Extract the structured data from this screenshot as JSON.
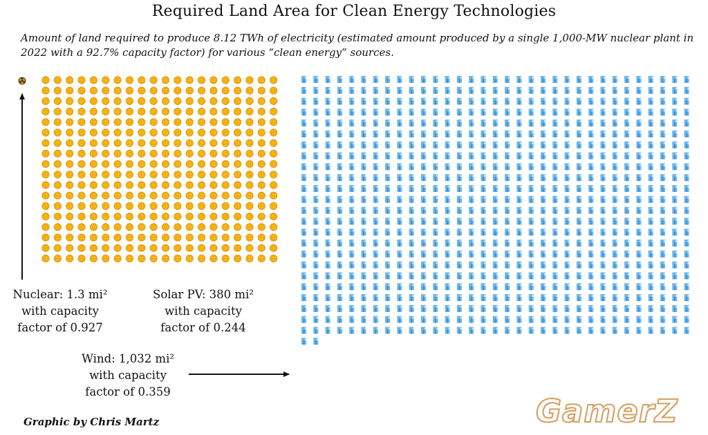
{
  "chart_data": {
    "type": "pictogram",
    "title": "Required Land Area for Clean Energy Technologies",
    "subtitle": "Amount of land required to produce 8.12 TWh of electricity (estimated amount produced by a single 1,000-MW nuclear plant in 2022 with a 92.7% capacity factor) for various “clean energy” sources.",
    "unit": "mi²",
    "series": [
      {
        "name": "Nuclear",
        "value": 1.3,
        "capacity_factor": 0.927,
        "icon": "radiation-icon",
        "color": "#d4a017",
        "label_lines": [
          "Nuclear: 1.3 mi²",
          "with capacity",
          "factor of 0.927"
        ]
      },
      {
        "name": "Solar PV",
        "value": 380,
        "capacity_factor": 0.244,
        "icon": "sun-icon",
        "color": "#f2b318",
        "label_lines": [
          "Solar PV: 380 mi²",
          "with capacity",
          "factor of 0.244"
        ]
      },
      {
        "name": "Wind",
        "value": 1032,
        "capacity_factor": 0.359,
        "icon": "wind-turbine-icon",
        "color": "#6cb6ea",
        "label_lines": [
          "Wind: 1,032 mi²",
          "with capacity",
          "factor of 0.359"
        ]
      }
    ]
  },
  "credit": "Graphic by Chris Martz",
  "watermark": "GamerZ"
}
